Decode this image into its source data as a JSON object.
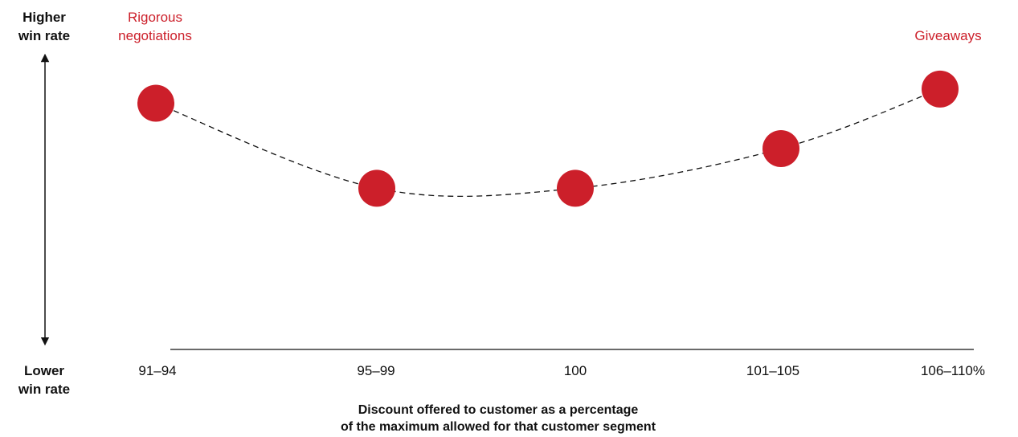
{
  "chart_data": {
    "type": "line",
    "categories": [
      "91–94",
      "95–99",
      "100",
      "101–105",
      "106–110%"
    ],
    "values": [
      0.84,
      0.54,
      0.54,
      0.68,
      0.89
    ],
    "value_scale_note": "",
    "y_axis": {
      "top_label": [
        "Higher",
        "win rate"
      ],
      "bottom_label": [
        "Lower",
        "win rate"
      ]
    },
    "xlabel": [
      "Discount offered to customer as a percentage",
      "of the maximum allowed for that customer segment"
    ],
    "annotations": [
      {
        "category": "91–94",
        "text": [
          "Rigorous",
          "negotiations"
        ]
      },
      {
        "category": "106–110%",
        "text": [
          "Giveaways"
        ]
      }
    ],
    "colors": {
      "marker": "#cc1f2a",
      "annotation": "#cc1f2a",
      "curve": "#111111"
    },
    "ylim": [
      0,
      1
    ],
    "grid": false,
    "line_style": "dashed"
  }
}
